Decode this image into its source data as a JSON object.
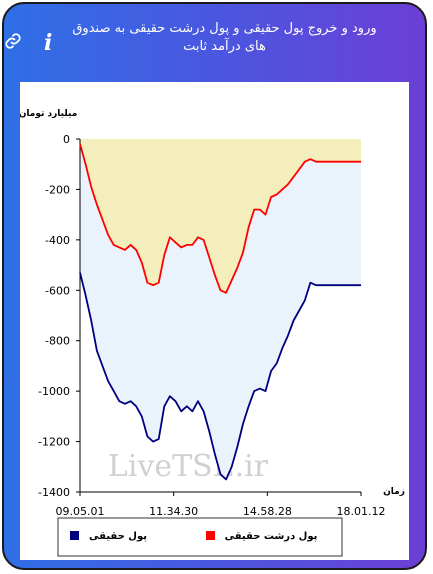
{
  "header": {
    "title": "ورود و خروج پول حقیقی و پول درشت حقیقی به صندوق های درآمد ثابت",
    "info_icon": "info-icon",
    "link_icon": "link-icon"
  },
  "colors": {
    "accent_start": "#2f6fe6",
    "accent_end": "#6b3fd6",
    "real_money": "#00007f",
    "big_real_money": "#ff0000",
    "upper_fill": "#f3eebb",
    "lower_fill": "#eaf3fb"
  },
  "watermark": "LiveTSE.ir",
  "chart_data": {
    "type": "line",
    "ylabel": "میلیارد تومان",
    "xlabel": "زمان",
    "ylim": [
      -1400,
      0
    ],
    "yticks": [
      0,
      -200,
      -400,
      -600,
      -800,
      -1000,
      -1200,
      -1400
    ],
    "xticks": [
      "09.05.01",
      "11.34.30",
      "14.58.28",
      "18.01.12"
    ],
    "grid": false,
    "legend_position": "bottom",
    "series": [
      {
        "name": "پول حقیقی",
        "color": "#00007f",
        "points": [
          [
            0,
            -530
          ],
          [
            0.02,
            -620
          ],
          [
            0.04,
            -720
          ],
          [
            0.06,
            -840
          ],
          [
            0.08,
            -900
          ],
          [
            0.1,
            -960
          ],
          [
            0.12,
            -1000
          ],
          [
            0.14,
            -1040
          ],
          [
            0.16,
            -1050
          ],
          [
            0.18,
            -1040
          ],
          [
            0.2,
            -1060
          ],
          [
            0.22,
            -1100
          ],
          [
            0.24,
            -1180
          ],
          [
            0.26,
            -1200
          ],
          [
            0.28,
            -1190
          ],
          [
            0.3,
            -1060
          ],
          [
            0.32,
            -1020
          ],
          [
            0.34,
            -1040
          ],
          [
            0.36,
            -1080
          ],
          [
            0.38,
            -1060
          ],
          [
            0.4,
            -1080
          ],
          [
            0.42,
            -1040
          ],
          [
            0.44,
            -1080
          ],
          [
            0.46,
            -1160
          ],
          [
            0.48,
            -1250
          ],
          [
            0.5,
            -1330
          ],
          [
            0.52,
            -1350
          ],
          [
            0.54,
            -1300
          ],
          [
            0.56,
            -1220
          ],
          [
            0.58,
            -1130
          ],
          [
            0.6,
            -1060
          ],
          [
            0.62,
            -1000
          ],
          [
            0.64,
            -990
          ],
          [
            0.66,
            -1000
          ],
          [
            0.68,
            -920
          ],
          [
            0.7,
            -890
          ],
          [
            0.72,
            -830
          ],
          [
            0.74,
            -780
          ],
          [
            0.76,
            -720
          ],
          [
            0.78,
            -680
          ],
          [
            0.8,
            -640
          ],
          [
            0.82,
            -570
          ],
          [
            0.84,
            -580
          ],
          [
            0.9,
            -580
          ],
          [
            1,
            -580
          ]
        ]
      },
      {
        "name": "پول درشت حقیقی",
        "color": "#ff0000",
        "points": [
          [
            0,
            -20
          ],
          [
            0.02,
            -100
          ],
          [
            0.04,
            -190
          ],
          [
            0.06,
            -260
          ],
          [
            0.08,
            -320
          ],
          [
            0.1,
            -380
          ],
          [
            0.12,
            -420
          ],
          [
            0.14,
            -430
          ],
          [
            0.16,
            -440
          ],
          [
            0.18,
            -420
          ],
          [
            0.2,
            -440
          ],
          [
            0.22,
            -490
          ],
          [
            0.24,
            -570
          ],
          [
            0.26,
            -580
          ],
          [
            0.28,
            -570
          ],
          [
            0.3,
            -460
          ],
          [
            0.32,
            -390
          ],
          [
            0.34,
            -410
          ],
          [
            0.36,
            -430
          ],
          [
            0.38,
            -420
          ],
          [
            0.4,
            -420
          ],
          [
            0.42,
            -390
          ],
          [
            0.44,
            -400
          ],
          [
            0.46,
            -470
          ],
          [
            0.48,
            -540
          ],
          [
            0.5,
            -600
          ],
          [
            0.52,
            -610
          ],
          [
            0.54,
            -560
          ],
          [
            0.56,
            -510
          ],
          [
            0.58,
            -450
          ],
          [
            0.6,
            -350
          ],
          [
            0.62,
            -280
          ],
          [
            0.64,
            -280
          ],
          [
            0.66,
            -300
          ],
          [
            0.68,
            -230
          ],
          [
            0.7,
            -220
          ],
          [
            0.72,
            -200
          ],
          [
            0.74,
            -180
          ],
          [
            0.76,
            -150
          ],
          [
            0.78,
            -120
          ],
          [
            0.8,
            -90
          ],
          [
            0.82,
            -80
          ],
          [
            0.84,
            -90
          ],
          [
            0.9,
            -90
          ],
          [
            1,
            -90
          ]
        ]
      }
    ]
  }
}
